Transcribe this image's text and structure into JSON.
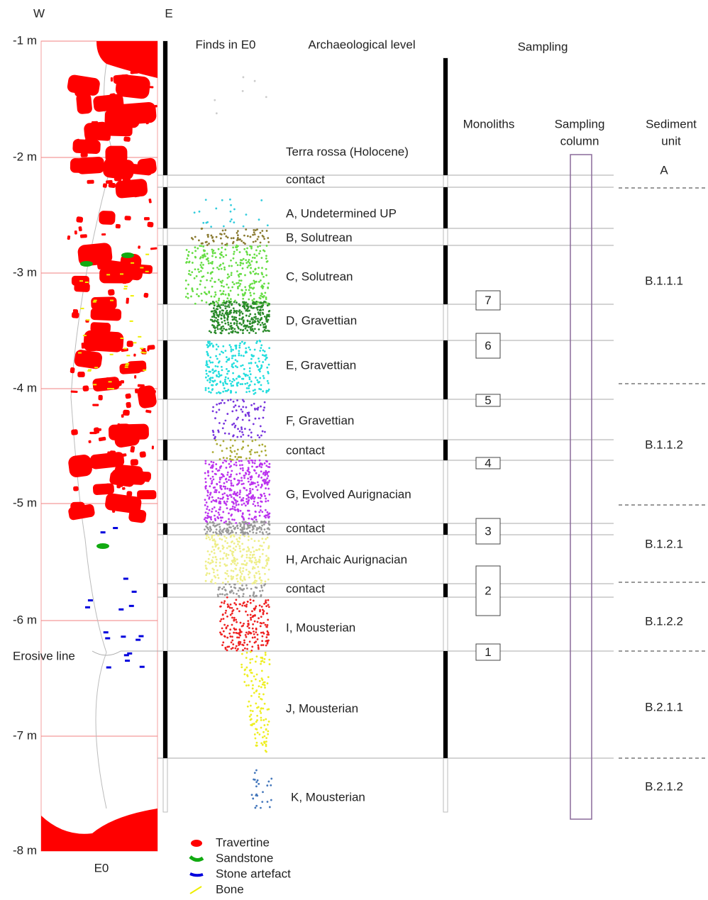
{
  "header": {
    "west": "W",
    "east": "E",
    "finds": "Finds in E0",
    "level": "Archaeological level",
    "sampling": "Sampling",
    "monoliths": "Monoliths",
    "sampling_column": [
      "Sampling",
      "column"
    ],
    "sediment_unit": [
      "Sediment",
      "unit"
    ]
  },
  "depth_labels": [
    "-1 m",
    "-2 m",
    "-3 m",
    "-4 m",
    "-5 m",
    "-6 m",
    "-7 m",
    "-8 m"
  ],
  "profile_label": "E0",
  "erosive_line": "Erosive line",
  "levels": [
    "Terra rossa (Holocene)",
    "contact",
    "A, Undetermined UP",
    "B, Solutrean",
    "C, Solutrean",
    "D, Gravettian",
    "E, Gravettian",
    "F, Gravettian",
    "contact",
    "G, Evolved Aurignacian",
    "contact",
    "H, Archaic Aurignacian",
    "contact",
    "I, Mousterian",
    "J, Mousterian",
    "K, Mousterian"
  ],
  "monoliths": [
    "7",
    "6",
    "5",
    "4",
    "3",
    "2",
    "1"
  ],
  "sediment_units": [
    "A",
    "B.1.1.1",
    "B.1.1.2",
    "B.1.2.1",
    "B.1.2.2",
    "B.2.1.1",
    "B.2.1.2"
  ],
  "legend": [
    "Travertine",
    "Sandstone",
    "Stone artefact",
    "Bone"
  ]
}
